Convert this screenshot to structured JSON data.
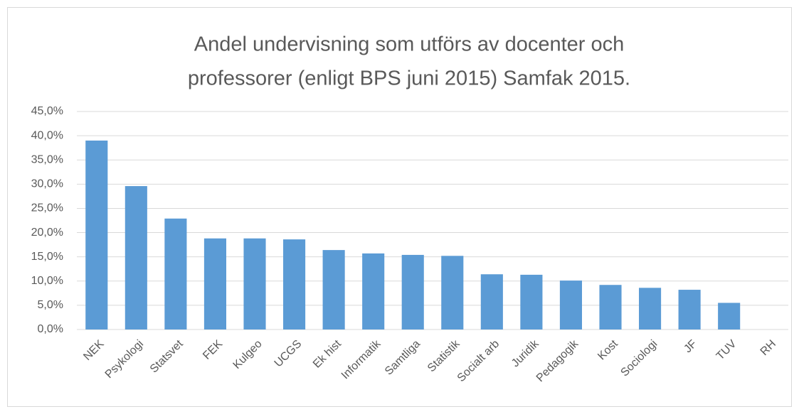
{
  "chart_data": {
    "type": "bar",
    "title": [
      "Andel undervisning som utförs av docenter och",
      "professorer (enligt BPS juni 2015) Samfak 2015."
    ],
    "categories": [
      "NEK",
      "Psykologi",
      "Statsvet",
      "FEK",
      "Kulgeo",
      "UCGS",
      "Ek hist",
      "Informatik",
      "Samtliga",
      "Statistik",
      "Socialt arb",
      "Juridik",
      "Pedagogik",
      "Kost",
      "Sociologi",
      "JF",
      "TUV",
      "RH"
    ],
    "values": [
      39.0,
      29.6,
      22.9,
      18.8,
      18.8,
      18.6,
      16.4,
      15.7,
      15.4,
      15.2,
      11.4,
      11.3,
      10.1,
      9.2,
      8.6,
      8.2,
      5.5,
      0
    ],
    "color": "#5b9bd5",
    "ylim": [
      0,
      45
    ],
    "yticks": [
      {
        "value": 0,
        "label": "0,0%"
      },
      {
        "value": 5,
        "label": "5,0%"
      },
      {
        "value": 10,
        "label": "10,0%"
      },
      {
        "value": 15,
        "label": "15,0%"
      },
      {
        "value": 20,
        "label": "20,0%"
      },
      {
        "value": 25,
        "label": "25,0%"
      },
      {
        "value": 30,
        "label": "30,0%"
      },
      {
        "value": 35,
        "label": "35,0%"
      },
      {
        "value": 40,
        "label": "40,0%"
      },
      {
        "value": 45,
        "label": "45,0%"
      }
    ],
    "grid": true
  }
}
